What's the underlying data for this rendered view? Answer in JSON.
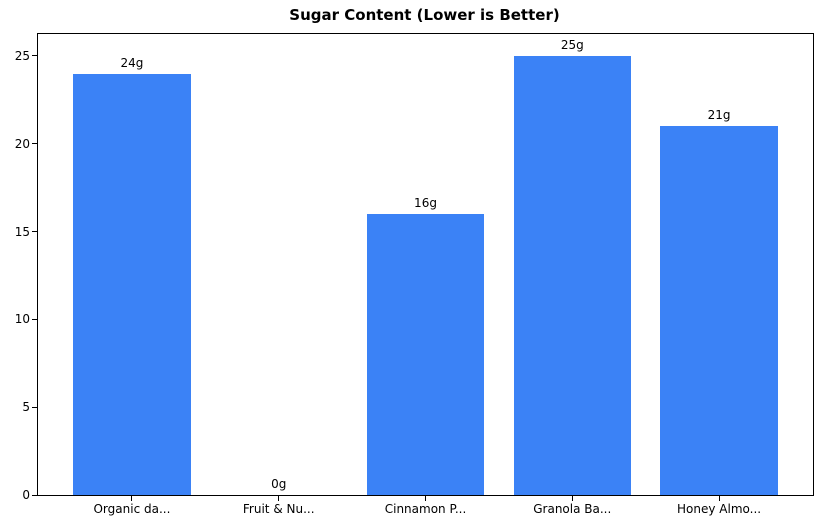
{
  "chart_data": {
    "type": "bar",
    "title": "Sugar Content (Lower is Better)",
    "categories": [
      "Organic da...",
      "Fruit & Nu...",
      "Cinnamon P...",
      "Granola Ba...",
      "Honey Almo..."
    ],
    "values": [
      24,
      0,
      16,
      25,
      21
    ],
    "value_labels": [
      "24g",
      "0g",
      "16g",
      "25g",
      "21g"
    ],
    "yticks": [
      0,
      5,
      10,
      15,
      20,
      25
    ],
    "ylim": [
      0,
      26.25
    ],
    "xlim": [
      -0.64,
      4.64
    ],
    "bar_width": 0.8,
    "bar_color": "#3b82f6",
    "text_color": "#000000",
    "xlabel": "",
    "ylabel": "",
    "grid": false,
    "legend_position": "none"
  }
}
